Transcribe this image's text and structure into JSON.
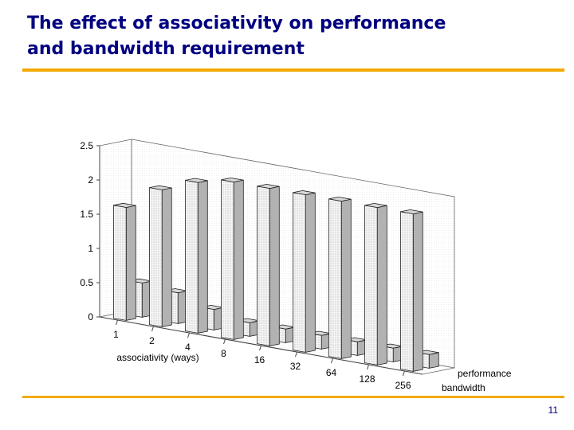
{
  "slide": {
    "title_line1": "The effect of associativity on performance",
    "title_line2": "and bandwidth requirement",
    "page_number": "11",
    "accent_color": "#f2a900",
    "title_color": "#000080"
  },
  "chart_data": {
    "type": "bar",
    "subtype": "3d-grouped",
    "title": "",
    "xlabel": "associativity (ways)",
    "ylabel": "",
    "categories": [
      "1",
      "2",
      "4",
      "8",
      "16",
      "32",
      "64",
      "128",
      "256"
    ],
    "ylim": [
      0,
      2.5
    ],
    "yticks": [
      "0",
      "0.5",
      "1",
      "1.5",
      "2",
      "2.5"
    ],
    "grid": false,
    "series": [
      {
        "name": "performance",
        "values": [
          1.65,
          2.0,
          2.2,
          2.3,
          2.3,
          2.3,
          2.3,
          2.3,
          2.3
        ]
      },
      {
        "name": "bandwidth",
        "values": [
          0.5,
          0.45,
          0.3,
          0.2,
          0.2,
          0.2,
          0.2,
          0.2,
          0.2
        ]
      }
    ]
  }
}
